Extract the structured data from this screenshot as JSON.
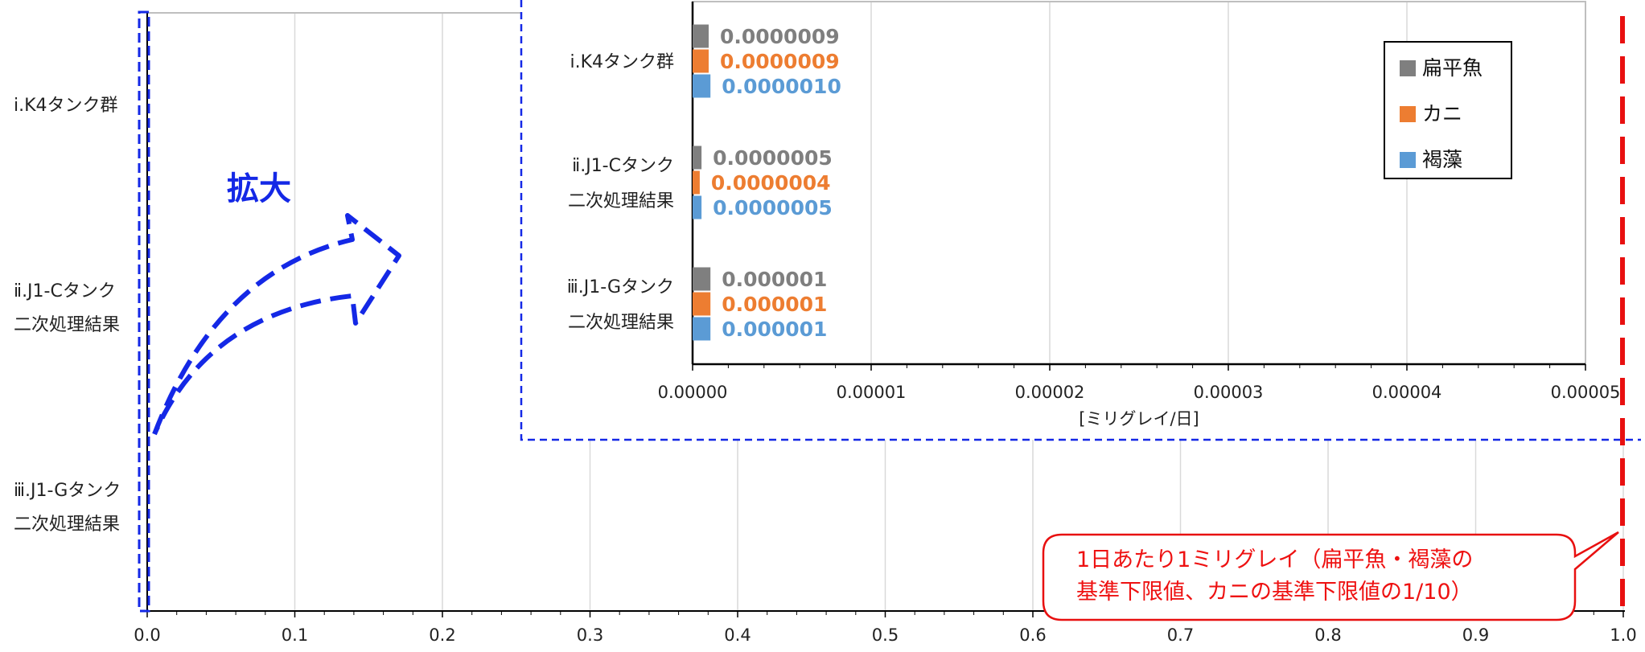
{
  "colors": {
    "扁平魚": "#7f7f7f",
    "カニ": "#ed7d31",
    "褐藻": "#5b9bd5",
    "zoom_blue": "#1428e6",
    "limit_red": "#e81010"
  },
  "zoom_label": "拡大",
  "limit_note": {
    "line1": "1日あたり1ミリグレイ（扁平魚・褐藻の",
    "line2": "基準下限値、カニの基準下限値の1/10）"
  },
  "chart_data": [
    {
      "type": "bar",
      "orientation": "horizontal",
      "categories": [
        [
          "ⅰ.K4タンク群"
        ],
        [
          "ⅱ.J1-Cタンク",
          "二次処理結果"
        ],
        [
          "ⅲ.J1-Gタンク",
          "二次処理結果"
        ]
      ],
      "series": [
        {
          "name": "扁平魚",
          "values": [
            9e-07,
            5e-07,
            1e-06
          ]
        },
        {
          "name": "カニ",
          "values": [
            9e-07,
            4e-07,
            1e-06
          ]
        },
        {
          "name": "褐藻",
          "values": [
            1e-06,
            5e-07,
            1e-06
          ]
        }
      ],
      "xlim": [
        0,
        1.0
      ],
      "xticks": [
        "0.0",
        "0.1",
        "0.2",
        "0.3",
        "0.4",
        "0.5",
        "0.6",
        "0.7",
        "0.8",
        "0.9",
        "1.0"
      ],
      "grid": true
    },
    {
      "type": "bar",
      "orientation": "horizontal",
      "categories": [
        [
          "ⅰ.K4タンク群"
        ],
        [
          "ⅱ.J1-Cタンク",
          "二次処理結果"
        ],
        [
          "ⅲ.J1-Gタンク",
          "二次処理結果"
        ]
      ],
      "series": [
        {
          "name": "扁平魚",
          "values": [
            9e-07,
            5e-07,
            1e-06
          ]
        },
        {
          "name": "カニ",
          "values": [
            9e-07,
            4e-07,
            1e-06
          ]
        },
        {
          "name": "褐藻",
          "values": [
            1e-06,
            5e-07,
            1e-06
          ]
        }
      ],
      "data_labels": [
        [
          "0.0000009",
          "0.0000009",
          "0.0000010"
        ],
        [
          "0.0000005",
          "0.0000004",
          "0.0000005"
        ],
        [
          "0.000001",
          "0.000001",
          "0.000001"
        ]
      ],
      "xlim": [
        0,
        5e-05
      ],
      "xticks": [
        "0.00000",
        "0.00001",
        "0.00002",
        "0.00003",
        "0.00004",
        "0.00005"
      ],
      "xlabel": "[ミリグレイ/日]",
      "legend": [
        "扁平魚",
        "カニ",
        "褐藻"
      ],
      "legend_position": "top-right",
      "grid": true
    }
  ]
}
